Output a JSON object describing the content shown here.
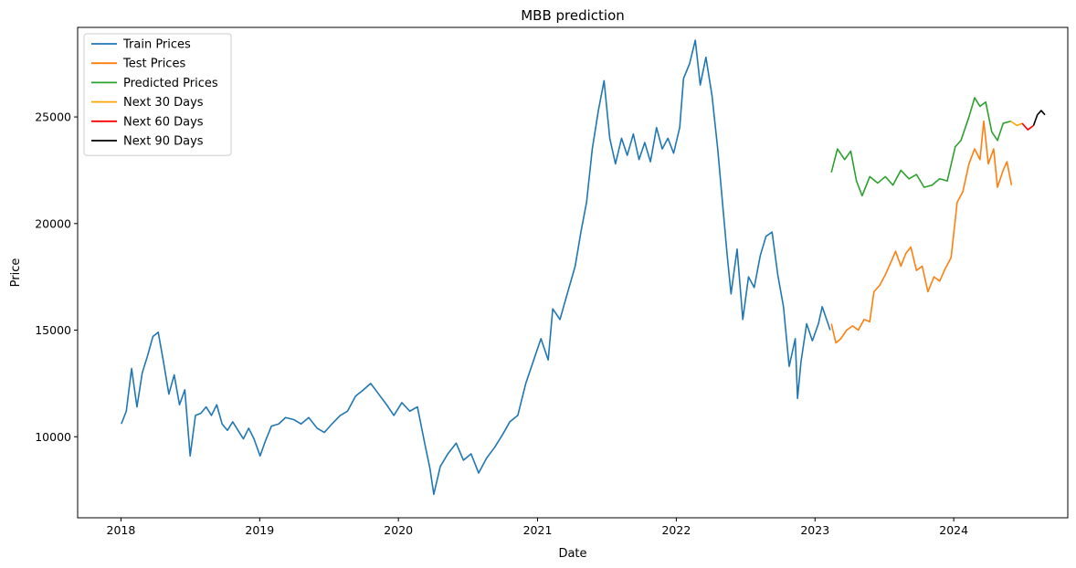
{
  "chart_data": {
    "type": "line",
    "title": "MBB prediction",
    "xlabel": "Date",
    "ylabel": "Price",
    "xlim": [
      "2017-09-09",
      "2024-10-27"
    ],
    "ylim": [
      6200,
      29200
    ],
    "x_ticks": [
      "2018",
      "2019",
      "2020",
      "2021",
      "2022",
      "2023",
      "2024"
    ],
    "y_ticks": [
      10000,
      15000,
      20000,
      25000
    ],
    "grid": false,
    "legend_position": "upper-left",
    "series": [
      {
        "name": "Train Prices",
        "color": "#1f77b4",
        "points": [
          [
            "2018-01-02",
            10600
          ],
          [
            "2018-01-15",
            11200
          ],
          [
            "2018-01-29",
            13200
          ],
          [
            "2018-02-12",
            11400
          ],
          [
            "2018-02-26",
            13000
          ],
          [
            "2018-03-12",
            13800
          ],
          [
            "2018-03-26",
            14700
          ],
          [
            "2018-04-09",
            14900
          ],
          [
            "2018-04-23",
            13500
          ],
          [
            "2018-05-07",
            12000
          ],
          [
            "2018-05-21",
            12900
          ],
          [
            "2018-06-04",
            11500
          ],
          [
            "2018-06-18",
            12200
          ],
          [
            "2018-07-02",
            9100
          ],
          [
            "2018-07-16",
            11000
          ],
          [
            "2018-07-30",
            11100
          ],
          [
            "2018-08-13",
            11400
          ],
          [
            "2018-08-27",
            11000
          ],
          [
            "2018-09-10",
            11500
          ],
          [
            "2018-09-24",
            10600
          ],
          [
            "2018-10-08",
            10300
          ],
          [
            "2018-10-22",
            10700
          ],
          [
            "2018-11-05",
            10300
          ],
          [
            "2018-11-19",
            9900
          ],
          [
            "2018-12-03",
            10400
          ],
          [
            "2018-12-17",
            9900
          ],
          [
            "2019-01-02",
            9100
          ],
          [
            "2019-01-16",
            9800
          ],
          [
            "2019-02-01",
            10500
          ],
          [
            "2019-02-20",
            10600
          ],
          [
            "2019-03-10",
            10900
          ],
          [
            "2019-04-01",
            10800
          ],
          [
            "2019-04-20",
            10600
          ],
          [
            "2019-05-10",
            10900
          ],
          [
            "2019-06-01",
            10400
          ],
          [
            "2019-06-20",
            10200
          ],
          [
            "2019-07-10",
            10600
          ],
          [
            "2019-08-01",
            11000
          ],
          [
            "2019-08-20",
            11200
          ],
          [
            "2019-09-10",
            11900
          ],
          [
            "2019-10-01",
            12200
          ],
          [
            "2019-10-20",
            12500
          ],
          [
            "2019-11-10",
            12000
          ],
          [
            "2019-12-01",
            11500
          ],
          [
            "2019-12-20",
            11000
          ],
          [
            "2020-01-10",
            11600
          ],
          [
            "2020-01-31",
            11200
          ],
          [
            "2020-02-20",
            11400
          ],
          [
            "2020-03-10",
            9700
          ],
          [
            "2020-03-24",
            8500
          ],
          [
            "2020-04-03",
            7300
          ],
          [
            "2020-04-20",
            8600
          ],
          [
            "2020-05-10",
            9200
          ],
          [
            "2020-06-01",
            9700
          ],
          [
            "2020-06-20",
            8900
          ],
          [
            "2020-07-10",
            9200
          ],
          [
            "2020-07-30",
            8300
          ],
          [
            "2020-08-20",
            9000
          ],
          [
            "2020-09-10",
            9500
          ],
          [
            "2020-10-01",
            10100
          ],
          [
            "2020-10-20",
            10700
          ],
          [
            "2020-11-10",
            11000
          ],
          [
            "2020-12-01",
            12500
          ],
          [
            "2020-12-20",
            13500
          ],
          [
            "2021-01-10",
            14600
          ],
          [
            "2021-01-29",
            13600
          ],
          [
            "2021-02-10",
            16000
          ],
          [
            "2021-03-01",
            15500
          ],
          [
            "2021-03-20",
            16700
          ],
          [
            "2021-04-10",
            18000
          ],
          [
            "2021-04-25",
            19600
          ],
          [
            "2021-05-10",
            21000
          ],
          [
            "2021-05-25",
            23500
          ],
          [
            "2021-06-10",
            25300
          ],
          [
            "2021-06-25",
            26700
          ],
          [
            "2021-07-10",
            24000
          ],
          [
            "2021-07-25",
            22800
          ],
          [
            "2021-08-10",
            24000
          ],
          [
            "2021-08-25",
            23200
          ],
          [
            "2021-09-10",
            24200
          ],
          [
            "2021-09-25",
            23000
          ],
          [
            "2021-10-10",
            23800
          ],
          [
            "2021-10-25",
            22900
          ],
          [
            "2021-11-10",
            24500
          ],
          [
            "2021-11-25",
            23500
          ],
          [
            "2021-12-10",
            24000
          ],
          [
            "2021-12-25",
            23300
          ],
          [
            "2022-01-10",
            24500
          ],
          [
            "2022-01-20",
            26800
          ],
          [
            "2022-02-05",
            27500
          ],
          [
            "2022-02-20",
            28600
          ],
          [
            "2022-03-05",
            26500
          ],
          [
            "2022-03-20",
            27800
          ],
          [
            "2022-04-05",
            26000
          ],
          [
            "2022-04-20",
            23500
          ],
          [
            "2022-05-05",
            20500
          ],
          [
            "2022-05-15",
            18500
          ],
          [
            "2022-05-25",
            16700
          ],
          [
            "2022-06-10",
            18800
          ],
          [
            "2022-06-25",
            15500
          ],
          [
            "2022-07-10",
            17500
          ],
          [
            "2022-07-25",
            17000
          ],
          [
            "2022-08-10",
            18500
          ],
          [
            "2022-08-25",
            19400
          ],
          [
            "2022-09-10",
            19600
          ],
          [
            "2022-09-25",
            17600
          ],
          [
            "2022-10-10",
            16100
          ],
          [
            "2022-10-25",
            13300
          ],
          [
            "2022-11-10",
            14600
          ],
          [
            "2022-11-16",
            11800
          ],
          [
            "2022-11-25",
            13500
          ],
          [
            "2022-12-10",
            15300
          ],
          [
            "2022-12-25",
            14500
          ],
          [
            "2023-01-10",
            15300
          ],
          [
            "2023-01-20",
            16100
          ],
          [
            "2023-02-10",
            15000
          ]
        ]
      },
      {
        "name": "Test Prices",
        "color": "#ff7f0e",
        "points": [
          [
            "2023-02-13",
            15300
          ],
          [
            "2023-02-25",
            14400
          ],
          [
            "2023-03-10",
            14600
          ],
          [
            "2023-03-25",
            15000
          ],
          [
            "2023-04-10",
            15200
          ],
          [
            "2023-04-25",
            15000
          ],
          [
            "2023-05-10",
            15500
          ],
          [
            "2023-05-25",
            15400
          ],
          [
            "2023-06-05",
            16800
          ],
          [
            "2023-06-20",
            17100
          ],
          [
            "2023-07-05",
            17600
          ],
          [
            "2023-07-20",
            18200
          ],
          [
            "2023-08-01",
            18700
          ],
          [
            "2023-08-15",
            18000
          ],
          [
            "2023-08-28",
            18600
          ],
          [
            "2023-09-10",
            18900
          ],
          [
            "2023-09-25",
            17800
          ],
          [
            "2023-10-10",
            18000
          ],
          [
            "2023-10-25",
            16800
          ],
          [
            "2023-11-10",
            17500
          ],
          [
            "2023-11-25",
            17300
          ],
          [
            "2023-12-10",
            17900
          ],
          [
            "2023-12-25",
            18400
          ],
          [
            "2024-01-10",
            21000
          ],
          [
            "2024-01-25",
            21500
          ],
          [
            "2024-02-10",
            22800
          ],
          [
            "2024-02-25",
            23500
          ],
          [
            "2024-03-10",
            23000
          ],
          [
            "2024-03-20",
            24800
          ],
          [
            "2024-04-01",
            22800
          ],
          [
            "2024-04-15",
            23500
          ],
          [
            "2024-04-25",
            21700
          ],
          [
            "2024-05-10",
            22500
          ],
          [
            "2024-05-20",
            22900
          ],
          [
            "2024-06-01",
            21800
          ]
        ]
      },
      {
        "name": "Predicted Prices",
        "color": "#2ca02c",
        "points": [
          [
            "2023-02-13",
            22400
          ],
          [
            "2023-03-01",
            23500
          ],
          [
            "2023-03-20",
            23000
          ],
          [
            "2023-04-05",
            23400
          ],
          [
            "2023-04-20",
            22000
          ],
          [
            "2023-05-05",
            21300
          ],
          [
            "2023-05-25",
            22200
          ],
          [
            "2023-06-15",
            21900
          ],
          [
            "2023-07-05",
            22200
          ],
          [
            "2023-07-25",
            21800
          ],
          [
            "2023-08-15",
            22500
          ],
          [
            "2023-09-05",
            22100
          ],
          [
            "2023-09-25",
            22300
          ],
          [
            "2023-10-15",
            21700
          ],
          [
            "2023-11-05",
            21800
          ],
          [
            "2023-11-25",
            22100
          ],
          [
            "2023-12-15",
            22000
          ],
          [
            "2024-01-05",
            23600
          ],
          [
            "2024-01-20",
            23900
          ],
          [
            "2024-02-10",
            25000
          ],
          [
            "2024-02-25",
            25900
          ],
          [
            "2024-03-10",
            25500
          ],
          [
            "2024-03-25",
            25700
          ],
          [
            "2024-04-10",
            24300
          ],
          [
            "2024-04-25",
            23900
          ],
          [
            "2024-05-10",
            24700
          ],
          [
            "2024-05-30",
            24800
          ]
        ]
      },
      {
        "name": "Next 30 Days",
        "color": "#ffa500",
        "points": [
          [
            "2024-05-30",
            24800
          ],
          [
            "2024-06-15",
            24600
          ],
          [
            "2024-06-29",
            24700
          ]
        ]
      },
      {
        "name": "Next 60 Days",
        "color": "#ff0000",
        "points": [
          [
            "2024-06-29",
            24700
          ],
          [
            "2024-07-14",
            24400
          ],
          [
            "2024-07-29",
            24600
          ]
        ]
      },
      {
        "name": "Next 90 Days",
        "color": "#000000",
        "points": [
          [
            "2024-07-29",
            24600
          ],
          [
            "2024-08-08",
            25100
          ],
          [
            "2024-08-18",
            25300
          ],
          [
            "2024-08-28",
            25100
          ]
        ]
      }
    ]
  }
}
